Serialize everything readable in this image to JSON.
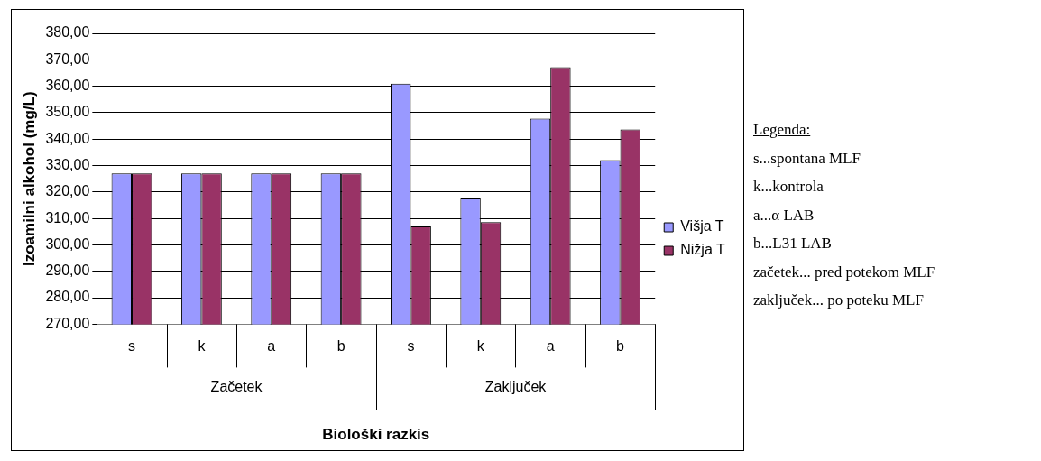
{
  "chart_data": {
    "type": "bar",
    "xlabel": "Biološki razkis",
    "ylabel": "Izoamilni alkohol (mg/L)",
    "categories": [
      "s",
      "k",
      "a",
      "b",
      "s",
      "k",
      "a",
      "b"
    ],
    "series": [
      {
        "name": "Višja T",
        "color": "#9999ff",
        "values": [
          327,
          327,
          327,
          327,
          361,
          317.6,
          347.8,
          332.1
        ]
      },
      {
        "name": "Nižja T",
        "color": "#993366",
        "values": [
          327,
          327,
          327,
          327,
          307,
          308.6,
          367.2,
          343.7
        ]
      }
    ],
    "ylim": [
      270,
      380
    ],
    "yticks": [
      {
        "value": 270,
        "label": "270,00"
      },
      {
        "value": 280,
        "label": "280,00"
      },
      {
        "value": 290,
        "label": "290,00"
      },
      {
        "value": 300,
        "label": "300,00"
      },
      {
        "value": 310,
        "label": "310,00"
      },
      {
        "value": 320,
        "label": "320,00"
      },
      {
        "value": 330,
        "label": "330,00"
      },
      {
        "value": 340,
        "label": "340,00"
      },
      {
        "value": 350,
        "label": "350,00"
      },
      {
        "value": 360,
        "label": "360,00"
      },
      {
        "value": 370,
        "label": "370,00"
      },
      {
        "value": 380,
        "label": "380,00"
      }
    ],
    "grid": "y",
    "legend": "right",
    "annotations": [
      "Začetek",
      "Zaključek",
      "Legenda:",
      "s...spontana MLF",
      "k...kontrola",
      "a...α LAB",
      "b...L31 LAB",
      "začetek... pred potekom MLF",
      "zaključek... po poteku MLF"
    ]
  }
}
